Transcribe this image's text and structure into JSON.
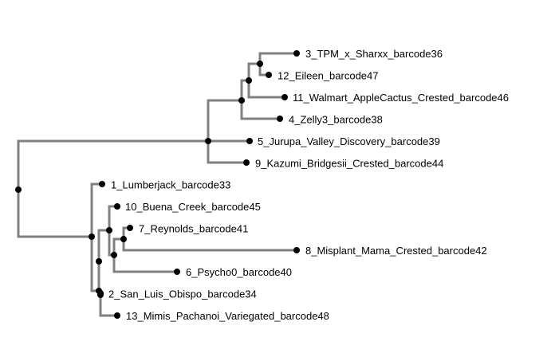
{
  "tree": {
    "branch_color": "#808080",
    "node_color": "#000000",
    "tips": [
      {
        "id": "t3",
        "label": "3_TPM_x_Sharxx_barcode36"
      },
      {
        "id": "t12",
        "label": "12_Eileen_barcode47"
      },
      {
        "id": "t11",
        "label": "11_Walmart_AppleCactus_Crested_barcode46"
      },
      {
        "id": "t4",
        "label": "4_Zelly3_barcode38"
      },
      {
        "id": "t5",
        "label": "5_Jurupa_Valley_Discovery_barcode39"
      },
      {
        "id": "t9",
        "label": "9_Kazumi_Bridgesii_Crested_barcode44"
      },
      {
        "id": "t1",
        "label": "1_Lumberjack_barcode33"
      },
      {
        "id": "t10",
        "label": "10_Buena_Creek_barcode45"
      },
      {
        "id": "t7",
        "label": "7_Reynolds_barcode41"
      },
      {
        "id": "t8",
        "label": "8_Misplant_Mama_Crested_barcode42"
      },
      {
        "id": "t6",
        "label": "6_Psycho0_barcode40"
      },
      {
        "id": "t2",
        "label": "2_San_Luis_Obispo_barcode34"
      },
      {
        "id": "t13",
        "label": "13_Mimis_Pachanoi_Variegated_barcode48"
      }
    ]
  }
}
